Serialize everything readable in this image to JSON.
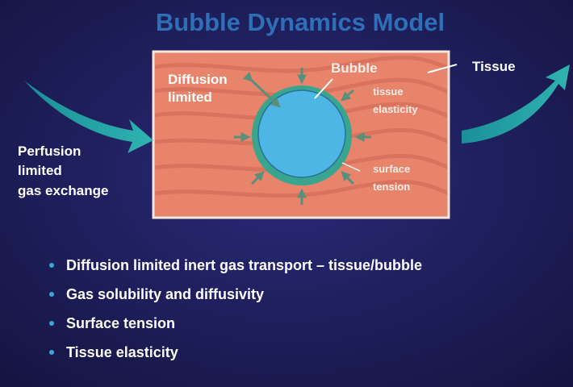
{
  "title": "Bubble Dynamics Model",
  "labels": {
    "diffusion_limited": [
      "Diffusion",
      "limited"
    ],
    "bubble": "Bubble",
    "tissue": "Tissue",
    "tissue_elasticity": [
      "tissue",
      "elasticity"
    ],
    "surface_tension": [
      "surface",
      "tension"
    ],
    "perfusion": [
      "Perfusion",
      "limited",
      "gas exchange"
    ]
  },
  "bullets": [
    "Diffusion limited inert gas transport – tissue/bubble",
    "Gas solubility and diffusivity",
    "Surface tension",
    "Tissue elasticity"
  ]
}
